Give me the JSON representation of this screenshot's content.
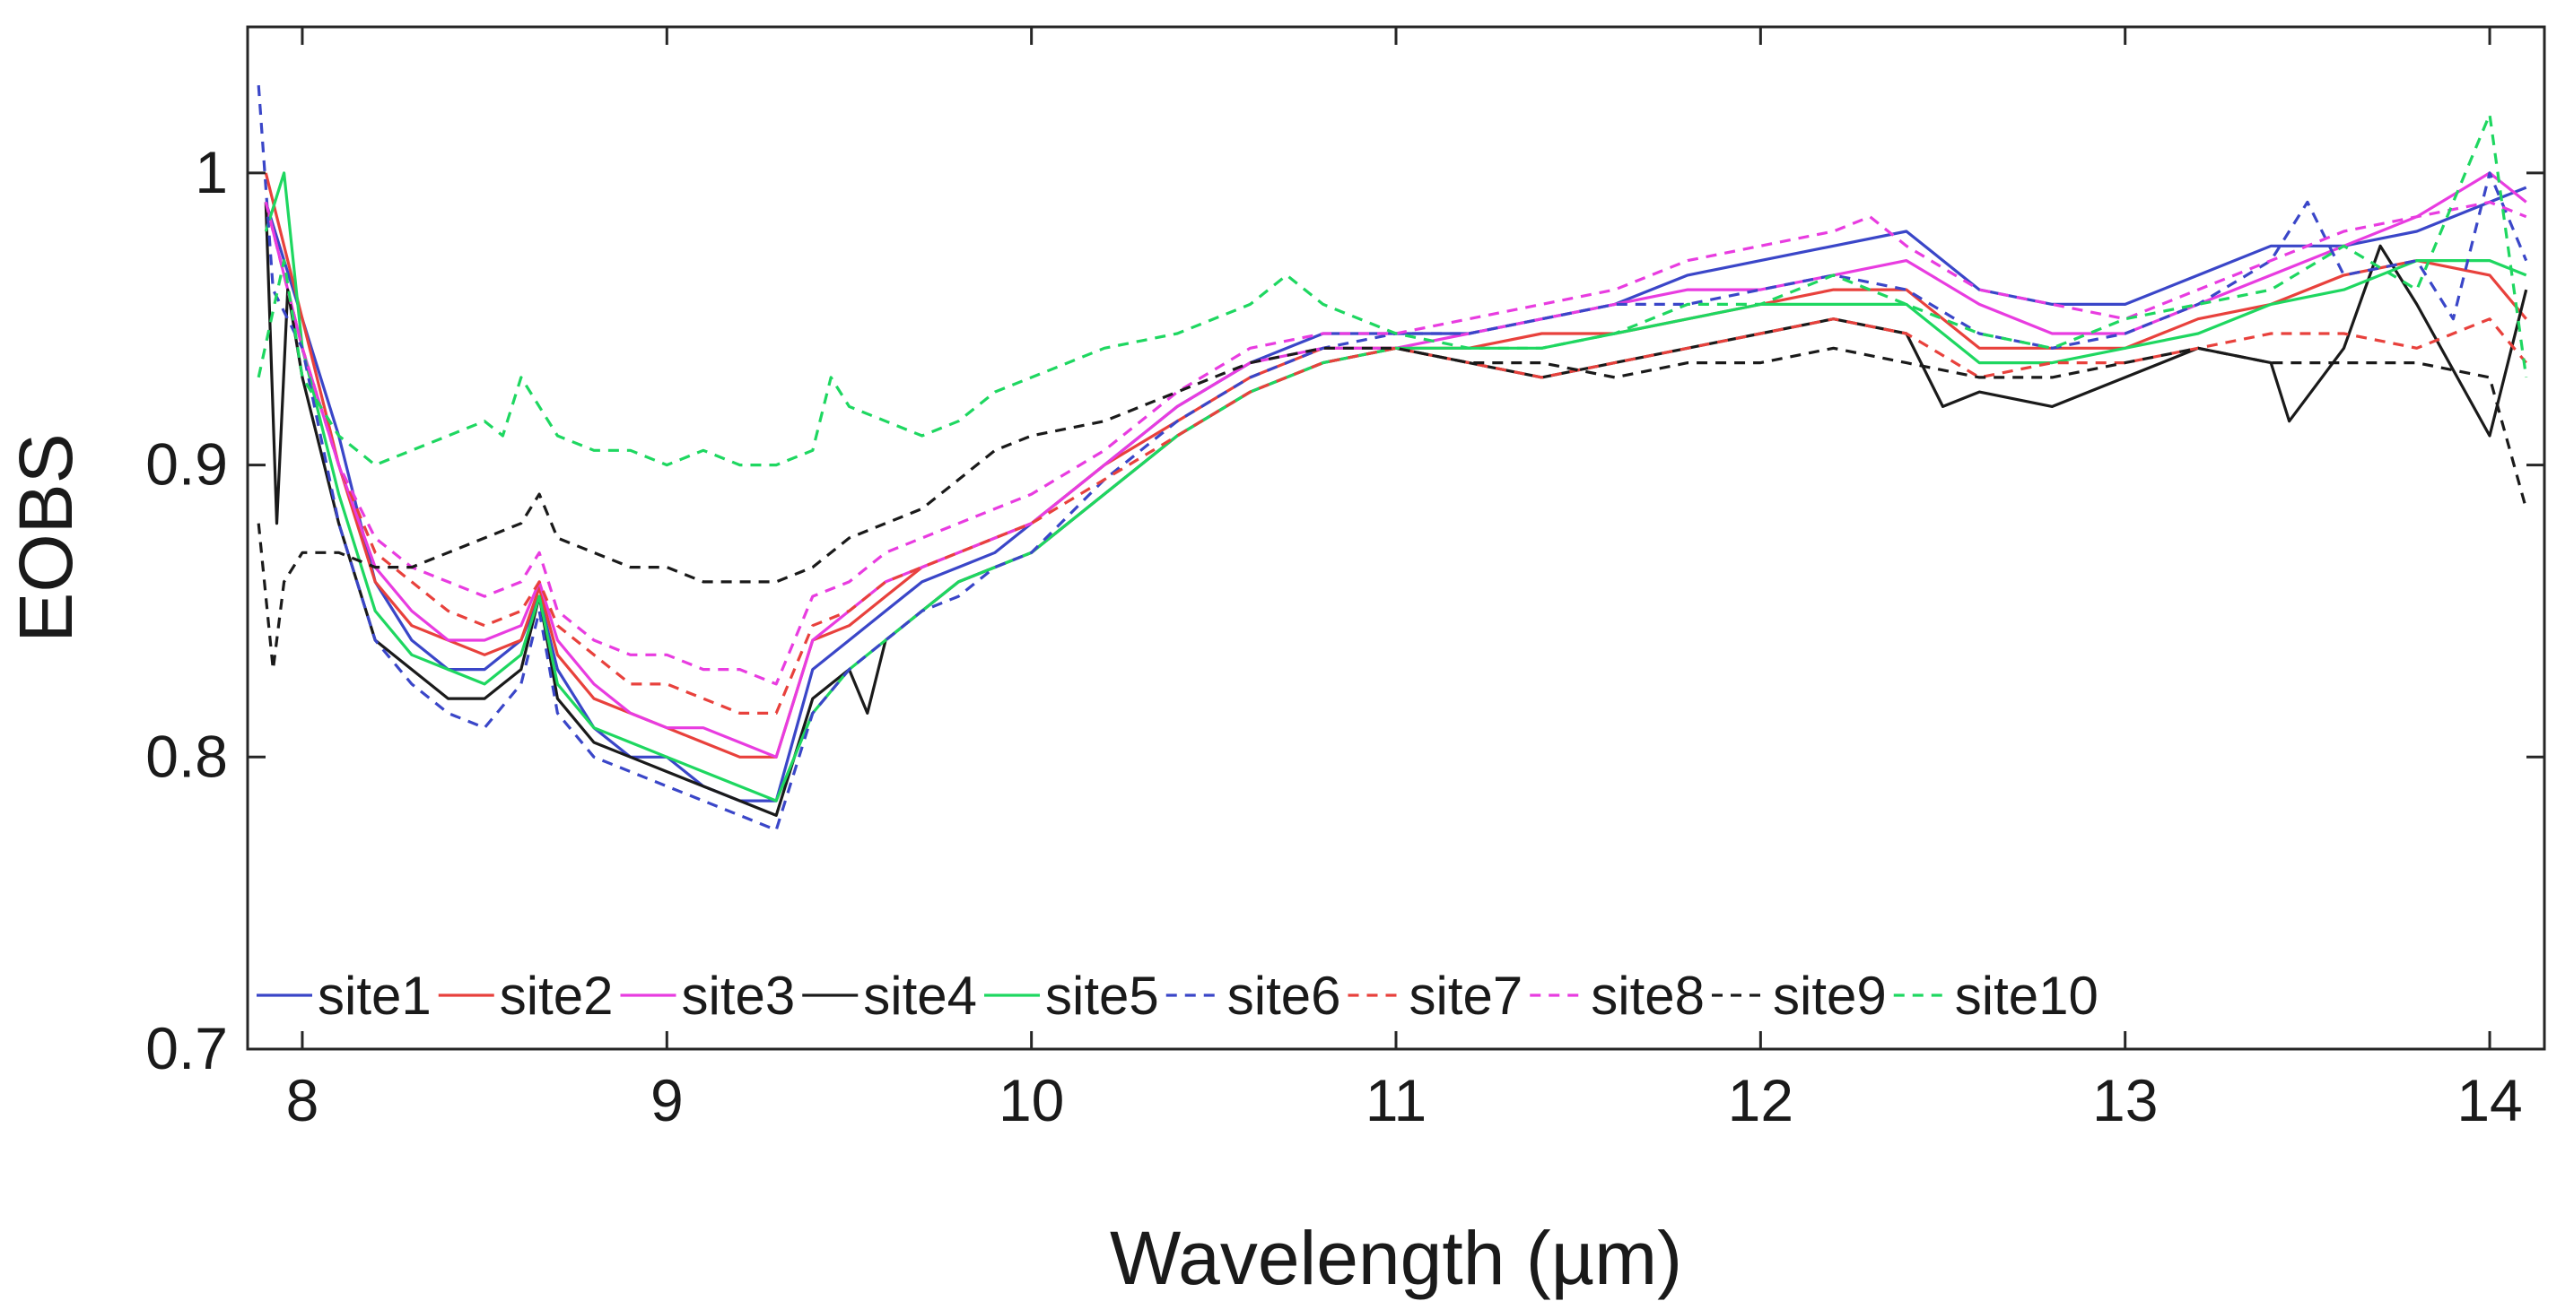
{
  "chart_data": {
    "type": "line",
    "title": "",
    "xlabel": "Wavelength (µm)",
    "ylabel": "EOBS",
    "xlim": [
      7.85,
      14.15
    ],
    "ylim": [
      0.7,
      1.05
    ],
    "xticks": [
      8,
      9,
      10,
      11,
      12,
      13,
      14
    ],
    "xtick_labels": [
      "8",
      "9",
      "10",
      "11",
      "12",
      "13",
      "14"
    ],
    "yticks": [
      0.7,
      0.8,
      0.9,
      1.0
    ],
    "ytick_labels": [
      "0.7",
      "0.8",
      "0.9",
      "1"
    ],
    "grid": false,
    "legend_position": "bottom-inside",
    "series": [
      {
        "name": "site1",
        "color": "#3a46c8",
        "dash": false,
        "x": [
          7.9,
          8.0,
          8.1,
          8.2,
          8.3,
          8.4,
          8.5,
          8.6,
          8.65,
          8.7,
          8.8,
          8.9,
          9.0,
          9.1,
          9.2,
          9.3,
          9.4,
          9.5,
          9.6,
          9.7,
          9.8,
          9.9,
          10.0,
          10.2,
          10.4,
          10.6,
          10.8,
          11.0,
          11.2,
          11.4,
          11.6,
          11.8,
          12.0,
          12.2,
          12.4,
          12.6,
          12.8,
          13.0,
          13.2,
          13.4,
          13.6,
          13.8,
          14.0,
          14.1
        ],
        "y": [
          0.99,
          0.95,
          0.91,
          0.86,
          0.84,
          0.83,
          0.83,
          0.84,
          0.855,
          0.83,
          0.81,
          0.8,
          0.8,
          0.79,
          0.785,
          0.785,
          0.83,
          0.84,
          0.85,
          0.86,
          0.865,
          0.87,
          0.88,
          0.9,
          0.92,
          0.935,
          0.945,
          0.945,
          0.945,
          0.95,
          0.955,
          0.965,
          0.97,
          0.975,
          0.98,
          0.96,
          0.955,
          0.955,
          0.965,
          0.975,
          0.975,
          0.98,
          0.99,
          0.995
        ]
      },
      {
        "name": "site2",
        "color": "#e8413c",
        "dash": false,
        "x": [
          7.9,
          8.0,
          8.1,
          8.2,
          8.3,
          8.4,
          8.5,
          8.6,
          8.65,
          8.7,
          8.8,
          8.9,
          9.0,
          9.1,
          9.2,
          9.3,
          9.4,
          9.5,
          9.6,
          9.7,
          9.8,
          9.9,
          10.0,
          10.2,
          10.4,
          10.6,
          10.8,
          11.0,
          11.2,
          11.4,
          11.6,
          11.8,
          12.0,
          12.2,
          12.4,
          12.6,
          12.8,
          13.0,
          13.2,
          13.4,
          13.6,
          13.8,
          14.0,
          14.1
        ],
        "y": [
          1.0,
          0.95,
          0.9,
          0.86,
          0.845,
          0.84,
          0.835,
          0.84,
          0.858,
          0.835,
          0.82,
          0.815,
          0.81,
          0.805,
          0.8,
          0.8,
          0.84,
          0.845,
          0.855,
          0.865,
          0.87,
          0.875,
          0.88,
          0.9,
          0.915,
          0.93,
          0.94,
          0.94,
          0.94,
          0.945,
          0.945,
          0.95,
          0.955,
          0.96,
          0.96,
          0.94,
          0.94,
          0.94,
          0.95,
          0.955,
          0.965,
          0.97,
          0.965,
          0.95
        ]
      },
      {
        "name": "site3",
        "color": "#e83ce0",
        "dash": false,
        "x": [
          7.9,
          8.0,
          8.1,
          8.2,
          8.3,
          8.4,
          8.5,
          8.6,
          8.65,
          8.7,
          8.8,
          8.9,
          9.0,
          9.1,
          9.2,
          9.3,
          9.4,
          9.5,
          9.6,
          9.7,
          9.8,
          9.9,
          10.0,
          10.2,
          10.4,
          10.6,
          10.8,
          11.0,
          11.2,
          11.4,
          11.6,
          11.8,
          12.0,
          12.2,
          12.4,
          12.6,
          12.8,
          13.0,
          13.2,
          13.4,
          13.6,
          13.8,
          14.0,
          14.1
        ],
        "y": [
          0.99,
          0.94,
          0.9,
          0.865,
          0.85,
          0.84,
          0.84,
          0.845,
          0.86,
          0.84,
          0.825,
          0.815,
          0.81,
          0.81,
          0.805,
          0.8,
          0.84,
          0.85,
          0.86,
          0.865,
          0.87,
          0.875,
          0.88,
          0.9,
          0.92,
          0.935,
          0.94,
          0.94,
          0.945,
          0.95,
          0.955,
          0.96,
          0.96,
          0.965,
          0.97,
          0.955,
          0.945,
          0.945,
          0.955,
          0.965,
          0.975,
          0.985,
          1.0,
          0.99
        ]
      },
      {
        "name": "site4",
        "color": "#1a1a1a",
        "dash": false,
        "x": [
          7.9,
          7.93,
          7.96,
          8.0,
          8.1,
          8.2,
          8.3,
          8.4,
          8.5,
          8.6,
          8.65,
          8.7,
          8.8,
          8.9,
          9.0,
          9.1,
          9.2,
          9.3,
          9.4,
          9.5,
          9.55,
          9.6,
          9.7,
          9.8,
          9.9,
          10.0,
          10.2,
          10.4,
          10.6,
          10.8,
          11.0,
          11.2,
          11.4,
          11.6,
          11.8,
          12.0,
          12.2,
          12.4,
          12.5,
          12.6,
          12.8,
          13.0,
          13.2,
          13.4,
          13.45,
          13.6,
          13.7,
          13.8,
          14.0,
          14.1
        ],
        "y": [
          0.99,
          0.88,
          0.96,
          0.93,
          0.88,
          0.84,
          0.83,
          0.82,
          0.82,
          0.83,
          0.855,
          0.82,
          0.805,
          0.8,
          0.795,
          0.79,
          0.785,
          0.78,
          0.82,
          0.83,
          0.815,
          0.84,
          0.85,
          0.86,
          0.865,
          0.87,
          0.89,
          0.91,
          0.925,
          0.935,
          0.94,
          0.935,
          0.93,
          0.935,
          0.94,
          0.945,
          0.95,
          0.945,
          0.92,
          0.925,
          0.92,
          0.93,
          0.94,
          0.935,
          0.915,
          0.94,
          0.975,
          0.955,
          0.91,
          0.96
        ]
      },
      {
        "name": "site5",
        "color": "#1ed760",
        "dash": false,
        "x": [
          7.9,
          7.95,
          8.0,
          8.1,
          8.2,
          8.3,
          8.4,
          8.5,
          8.6,
          8.65,
          8.7,
          8.8,
          8.9,
          9.0,
          9.1,
          9.2,
          9.3,
          9.4,
          9.5,
          9.6,
          9.7,
          9.8,
          9.9,
          10.0,
          10.2,
          10.4,
          10.6,
          10.8,
          11.0,
          11.2,
          11.4,
          11.6,
          11.8,
          12.0,
          12.2,
          12.4,
          12.6,
          12.8,
          13.0,
          13.2,
          13.4,
          13.6,
          13.8,
          14.0,
          14.1
        ],
        "y": [
          0.98,
          1.0,
          0.94,
          0.89,
          0.85,
          0.835,
          0.83,
          0.825,
          0.835,
          0.855,
          0.825,
          0.81,
          0.805,
          0.8,
          0.795,
          0.79,
          0.785,
          0.815,
          0.83,
          0.84,
          0.85,
          0.86,
          0.865,
          0.87,
          0.89,
          0.91,
          0.925,
          0.935,
          0.94,
          0.94,
          0.94,
          0.945,
          0.95,
          0.955,
          0.955,
          0.955,
          0.935,
          0.935,
          0.94,
          0.945,
          0.955,
          0.96,
          0.97,
          0.97,
          0.965
        ]
      },
      {
        "name": "site6",
        "color": "#3a46c8",
        "dash": true,
        "x": [
          7.88,
          7.92,
          8.0,
          8.1,
          8.2,
          8.3,
          8.4,
          8.5,
          8.6,
          8.65,
          8.7,
          8.8,
          8.9,
          9.0,
          9.1,
          9.2,
          9.3,
          9.4,
          9.5,
          9.6,
          9.7,
          9.8,
          9.9,
          10.0,
          10.2,
          10.4,
          10.6,
          10.8,
          11.0,
          11.2,
          11.4,
          11.6,
          11.8,
          12.0,
          12.2,
          12.4,
          12.6,
          12.8,
          13.0,
          13.2,
          13.4,
          13.5,
          13.6,
          13.8,
          13.9,
          14.0,
          14.1
        ],
        "y": [
          1.03,
          0.96,
          0.94,
          0.88,
          0.84,
          0.825,
          0.815,
          0.81,
          0.825,
          0.85,
          0.815,
          0.8,
          0.795,
          0.79,
          0.785,
          0.78,
          0.775,
          0.815,
          0.83,
          0.84,
          0.85,
          0.855,
          0.865,
          0.87,
          0.895,
          0.915,
          0.93,
          0.94,
          0.945,
          0.945,
          0.95,
          0.955,
          0.955,
          0.96,
          0.965,
          0.96,
          0.945,
          0.94,
          0.945,
          0.955,
          0.97,
          0.99,
          0.965,
          0.97,
          0.95,
          1.0,
          0.97
        ]
      },
      {
        "name": "site7",
        "color": "#e8413c",
        "dash": true,
        "x": [
          7.9,
          8.0,
          8.1,
          8.2,
          8.3,
          8.4,
          8.5,
          8.6,
          8.65,
          8.7,
          8.8,
          8.9,
          9.0,
          9.1,
          9.2,
          9.3,
          9.4,
          9.5,
          9.6,
          9.7,
          9.8,
          9.9,
          10.0,
          10.2,
          10.4,
          10.6,
          10.8,
          11.0,
          11.2,
          11.4,
          11.6,
          11.8,
          12.0,
          12.2,
          12.4,
          12.6,
          12.8,
          13.0,
          13.2,
          13.4,
          13.6,
          13.8,
          14.0,
          14.1
        ],
        "y": [
          0.99,
          0.94,
          0.9,
          0.87,
          0.86,
          0.85,
          0.845,
          0.85,
          0.86,
          0.845,
          0.835,
          0.825,
          0.825,
          0.82,
          0.815,
          0.815,
          0.845,
          0.85,
          0.86,
          0.865,
          0.87,
          0.875,
          0.88,
          0.895,
          0.91,
          0.925,
          0.935,
          0.94,
          0.935,
          0.93,
          0.935,
          0.94,
          0.945,
          0.95,
          0.945,
          0.93,
          0.935,
          0.935,
          0.94,
          0.945,
          0.945,
          0.94,
          0.95,
          0.935
        ]
      },
      {
        "name": "site8",
        "color": "#e83ce0",
        "dash": true,
        "x": [
          7.9,
          8.0,
          8.1,
          8.2,
          8.3,
          8.4,
          8.5,
          8.6,
          8.65,
          8.7,
          8.8,
          8.9,
          9.0,
          9.1,
          9.2,
          9.3,
          9.4,
          9.5,
          9.6,
          9.7,
          9.8,
          9.9,
          10.0,
          10.2,
          10.4,
          10.6,
          10.8,
          11.0,
          11.2,
          11.4,
          11.6,
          11.8,
          12.0,
          12.2,
          12.3,
          12.4,
          12.6,
          12.8,
          13.0,
          13.2,
          13.4,
          13.6,
          13.8,
          14.0,
          14.1
        ],
        "y": [
          0.99,
          0.94,
          0.9,
          0.875,
          0.865,
          0.86,
          0.855,
          0.86,
          0.87,
          0.85,
          0.84,
          0.835,
          0.835,
          0.83,
          0.83,
          0.825,
          0.855,
          0.86,
          0.87,
          0.875,
          0.88,
          0.885,
          0.89,
          0.905,
          0.925,
          0.94,
          0.945,
          0.945,
          0.95,
          0.955,
          0.96,
          0.97,
          0.975,
          0.98,
          0.985,
          0.975,
          0.96,
          0.955,
          0.95,
          0.96,
          0.97,
          0.98,
          0.985,
          0.99,
          0.985
        ]
      },
      {
        "name": "site9",
        "color": "#1a1a1a",
        "dash": true,
        "x": [
          7.88,
          7.92,
          7.95,
          8.0,
          8.1,
          8.2,
          8.3,
          8.4,
          8.5,
          8.6,
          8.65,
          8.7,
          8.8,
          8.9,
          9.0,
          9.1,
          9.2,
          9.3,
          9.4,
          9.5,
          9.6,
          9.7,
          9.8,
          9.9,
          10.0,
          10.2,
          10.4,
          10.6,
          10.8,
          11.0,
          11.2,
          11.4,
          11.6,
          11.8,
          12.0,
          12.2,
          12.4,
          12.6,
          12.8,
          13.0,
          13.2,
          13.4,
          13.6,
          13.8,
          14.0,
          14.1
        ],
        "y": [
          0.88,
          0.83,
          0.86,
          0.87,
          0.87,
          0.865,
          0.865,
          0.87,
          0.875,
          0.88,
          0.89,
          0.875,
          0.87,
          0.865,
          0.865,
          0.86,
          0.86,
          0.86,
          0.865,
          0.875,
          0.88,
          0.885,
          0.895,
          0.905,
          0.91,
          0.915,
          0.925,
          0.935,
          0.94,
          0.94,
          0.935,
          0.935,
          0.93,
          0.935,
          0.935,
          0.94,
          0.935,
          0.93,
          0.93,
          0.935,
          0.94,
          0.935,
          0.935,
          0.935,
          0.93,
          0.885
        ]
      },
      {
        "name": "site10",
        "color": "#1ed760",
        "dash": true,
        "x": [
          7.88,
          7.95,
          8.0,
          8.1,
          8.2,
          8.3,
          8.4,
          8.5,
          8.55,
          8.6,
          8.7,
          8.8,
          8.9,
          9.0,
          9.1,
          9.2,
          9.3,
          9.4,
          9.45,
          9.5,
          9.6,
          9.7,
          9.8,
          9.9,
          10.0,
          10.2,
          10.4,
          10.6,
          10.7,
          10.8,
          11.0,
          11.2,
          11.4,
          11.6,
          11.8,
          12.0,
          12.2,
          12.4,
          12.6,
          12.8,
          13.0,
          13.2,
          13.4,
          13.6,
          13.8,
          14.0,
          14.1
        ],
        "y": [
          0.93,
          0.97,
          0.93,
          0.91,
          0.9,
          0.905,
          0.91,
          0.915,
          0.91,
          0.93,
          0.91,
          0.905,
          0.905,
          0.9,
          0.905,
          0.9,
          0.9,
          0.905,
          0.93,
          0.92,
          0.915,
          0.91,
          0.915,
          0.925,
          0.93,
          0.94,
          0.945,
          0.955,
          0.965,
          0.955,
          0.945,
          0.94,
          0.94,
          0.945,
          0.955,
          0.955,
          0.965,
          0.955,
          0.945,
          0.94,
          0.95,
          0.955,
          0.96,
          0.975,
          0.96,
          1.02,
          0.93
        ]
      }
    ]
  }
}
